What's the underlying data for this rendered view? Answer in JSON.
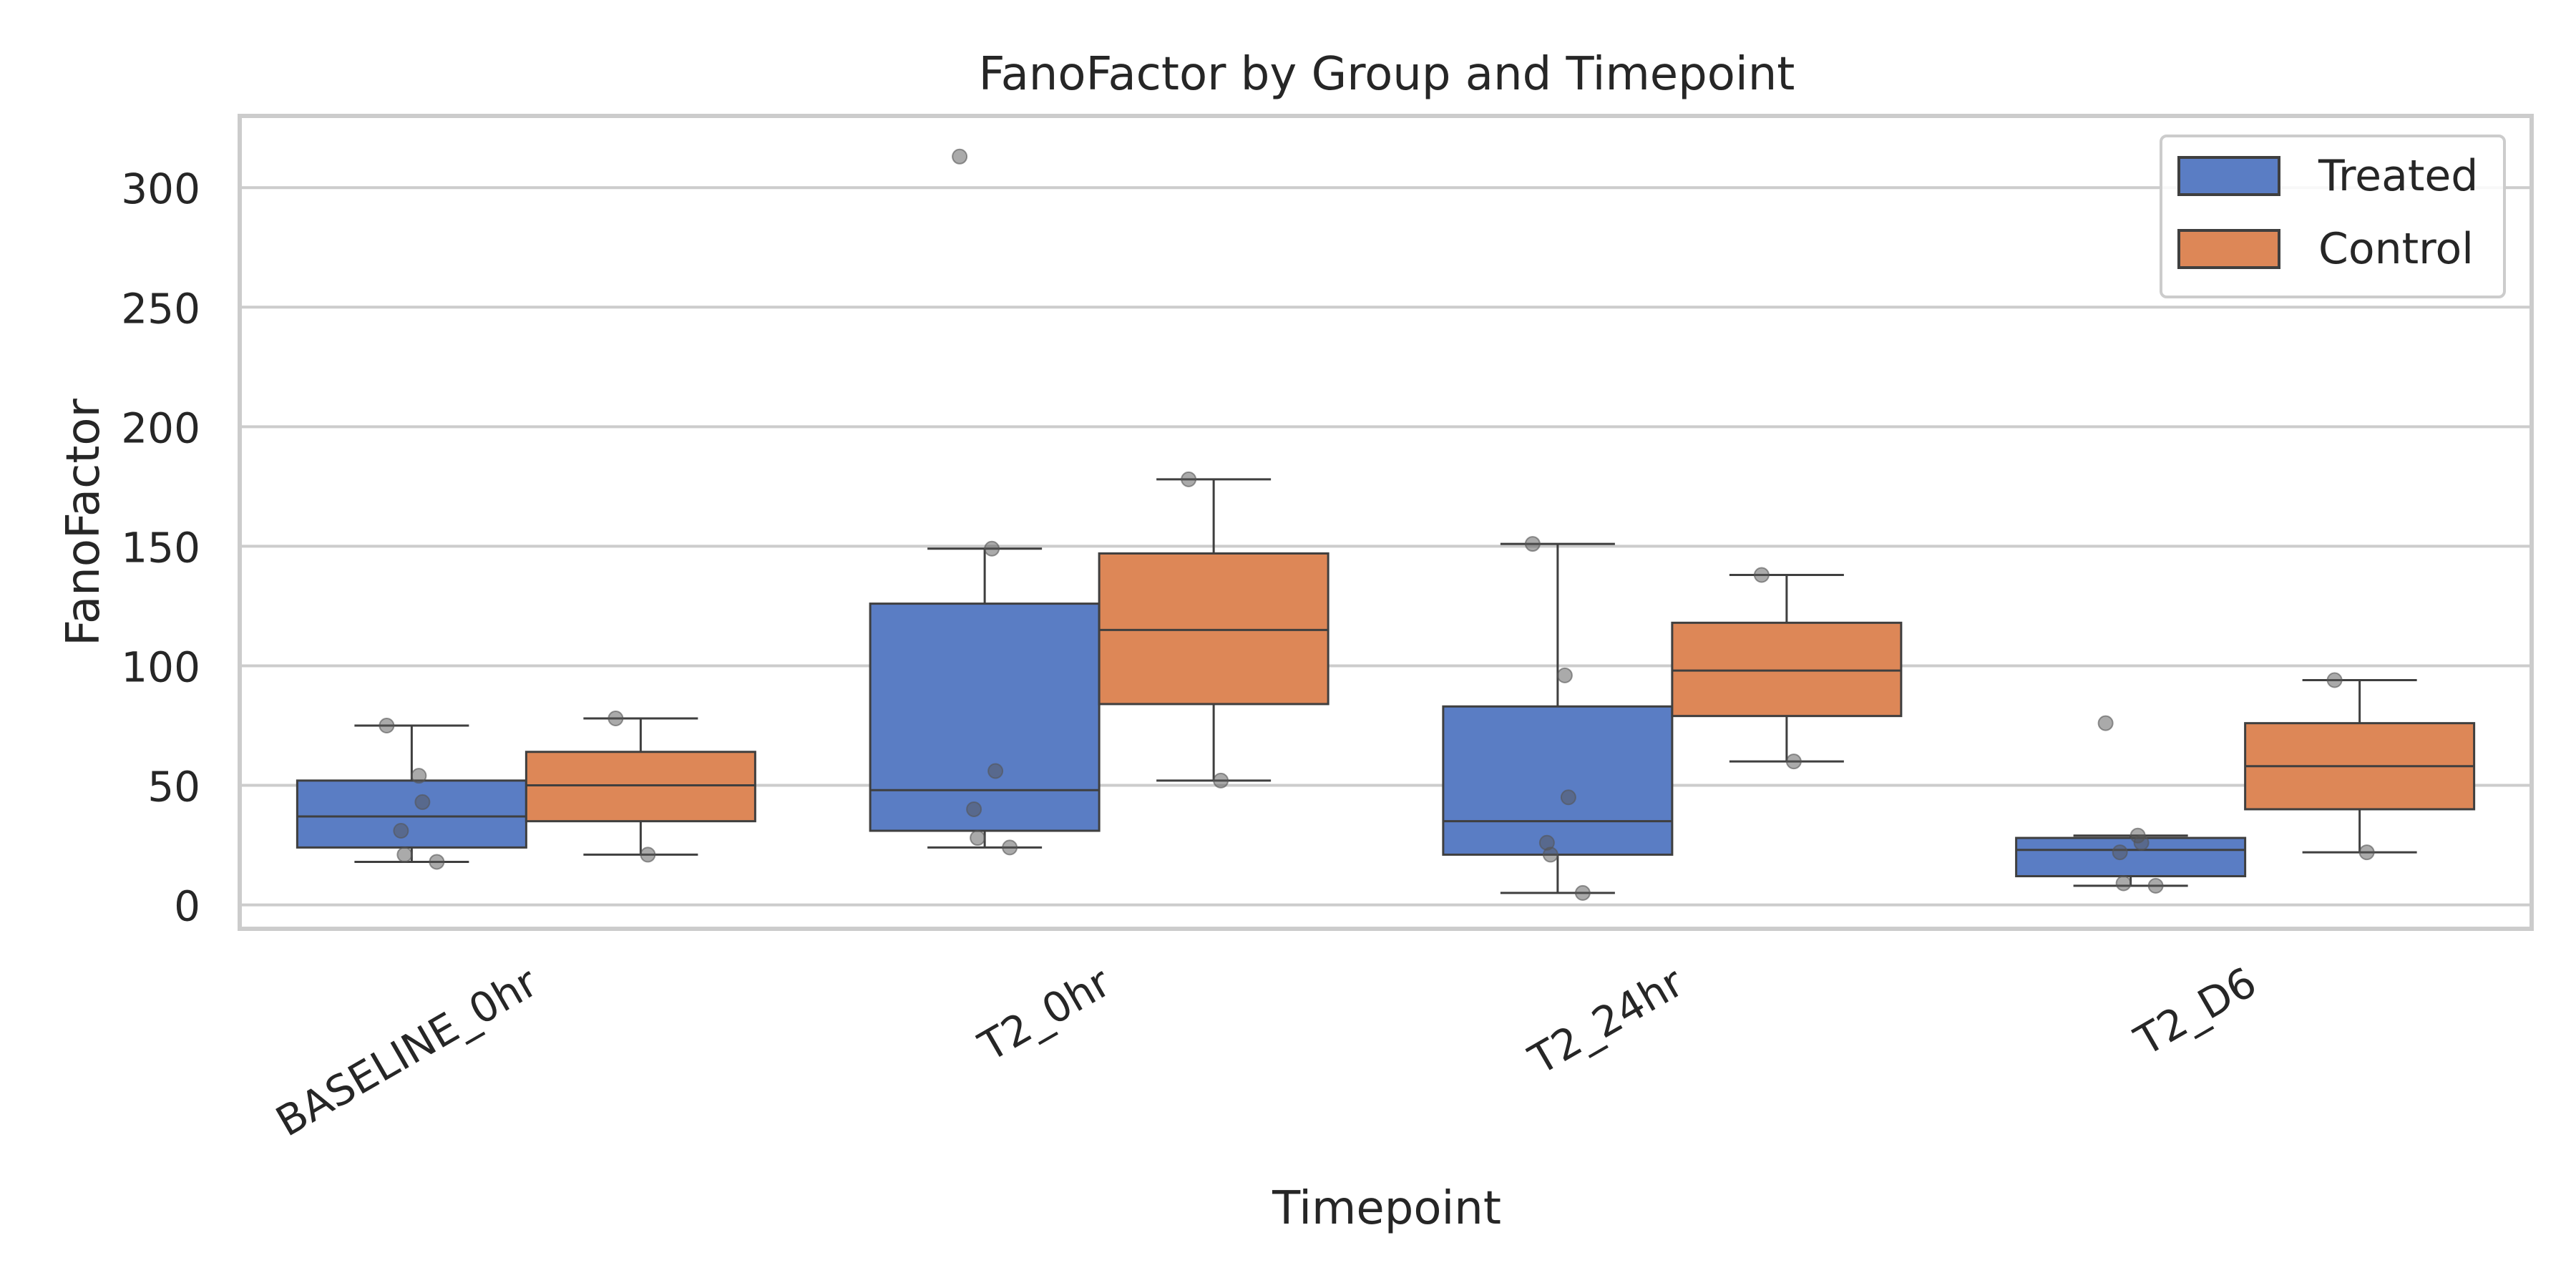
{
  "chart_data": {
    "type": "box",
    "title": "FanoFactor by Group and Timepoint",
    "xlabel": "Timepoint",
    "ylabel": "FanoFactor",
    "ylim": [
      -10,
      330
    ],
    "yticks": [
      0,
      50,
      100,
      150,
      200,
      250,
      300
    ],
    "grid": "horizontal",
    "legend_position": "top-right",
    "categories": [
      "BASELINE_0hr",
      "T2_0hr",
      "T2_24hr",
      "T2_D6"
    ],
    "series": [
      {
        "name": "Treated",
        "color": "#5a7dc4",
        "boxes": [
          {
            "whisker_low": 18,
            "q1": 24,
            "median": 37,
            "q3": 52,
            "whisker_high": 75,
            "points": [
              75,
              54,
              43,
              31,
              21,
              18
            ]
          },
          {
            "whisker_low": 24,
            "q1": 31,
            "median": 48,
            "q3": 126,
            "whisker_high": 149,
            "points": [
              313,
              149,
              56,
              40,
              28,
              24
            ]
          },
          {
            "whisker_low": 5,
            "q1": 21,
            "median": 35,
            "q3": 83,
            "whisker_high": 151,
            "points": [
              151,
              96,
              45,
              26,
              21,
              5
            ]
          },
          {
            "whisker_low": 8,
            "q1": 12,
            "median": 23,
            "q3": 28,
            "whisker_high": 29,
            "points": [
              76,
              29,
              26,
              22,
              9,
              8
            ]
          }
        ]
      },
      {
        "name": "Control",
        "color": "#dd8757",
        "boxes": [
          {
            "whisker_low": 21,
            "q1": 35,
            "median": 50,
            "q3": 64,
            "whisker_high": 78,
            "points": [
              78,
              21
            ]
          },
          {
            "whisker_low": 52,
            "q1": 84,
            "median": 115,
            "q3": 147,
            "whisker_high": 178,
            "points": [
              178,
              52
            ]
          },
          {
            "whisker_low": 60,
            "q1": 79,
            "median": 98,
            "q3": 118,
            "whisker_high": 138,
            "points": [
              138,
              60
            ]
          },
          {
            "whisker_low": 22,
            "q1": 40,
            "median": 58,
            "q3": 76,
            "whisker_high": 94,
            "points": [
              94,
              22
            ]
          }
        ]
      }
    ]
  }
}
